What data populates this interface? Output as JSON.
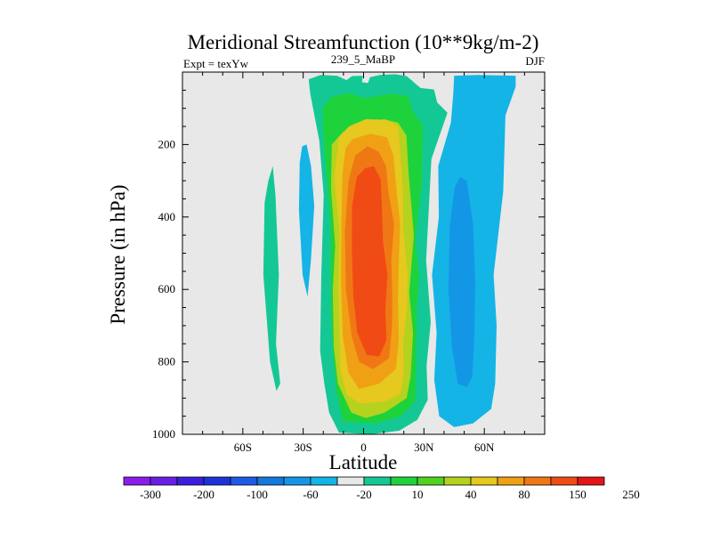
{
  "chart_data": {
    "type": "heatmap",
    "title": "Meridional Streamfunction (10**9kg/m-2)",
    "left_label": "Expt = texYw",
    "center_label": "239_5_MaBP",
    "right_label": "DJF",
    "xlabel": "Latitude",
    "ylabel": "Pressure (in hPa)",
    "xlim": [
      -90,
      90
    ],
    "ylim": [
      1000,
      0
    ],
    "x_ticks": [
      {
        "value": -60,
        "label": "60S"
      },
      {
        "value": -30,
        "label": "30S"
      },
      {
        "value": 0,
        "label": "0"
      },
      {
        "value": 30,
        "label": "30N"
      },
      {
        "value": 60,
        "label": "60N"
      }
    ],
    "y_ticks": [
      {
        "value": 200,
        "label": "200"
      },
      {
        "value": 400,
        "label": "400"
      },
      {
        "value": 600,
        "label": "600"
      },
      {
        "value": 800,
        "label": "800"
      },
      {
        "value": 1000,
        "label": "1000"
      }
    ],
    "background_color": "#e8e8e8",
    "colorbar": {
      "colors": [
        "#8c1eec",
        "#6a1ee8",
        "#3c1ee0",
        "#1e32dc",
        "#1e5ae6",
        "#1478dc",
        "#1496e6",
        "#14b4e6",
        "#e8e8e8",
        "#14c896",
        "#1ed23c",
        "#50d21e",
        "#b4d21e",
        "#e6c81e",
        "#f0a014",
        "#f07814",
        "#f04b14",
        "#e61414"
      ],
      "labels": [
        "-300",
        "-200",
        "-100",
        "-60",
        "-20",
        "10",
        "40",
        "80",
        "150",
        "250"
      ]
    },
    "contour_fields": [
      {
        "level": 10,
        "color": "#14c896",
        "polygon": [
          [
            -5.7,
            11
          ],
          [
            -0.3,
            10
          ],
          [
            -0.8,
            28
          ],
          [
            2.2,
            30
          ],
          [
            3.2,
            14
          ],
          [
            8.2,
            8
          ],
          [
            15.6,
            6
          ],
          [
            21.4,
            11
          ],
          [
            28.3,
            44
          ],
          [
            35,
            48
          ],
          [
            36.6,
            84
          ],
          [
            41.7,
            112
          ],
          [
            33.7,
            240
          ],
          [
            31.1,
            520
          ],
          [
            33.4,
            690
          ],
          [
            31.3,
            810
          ],
          [
            31.9,
            905
          ],
          [
            26.7,
            960
          ],
          [
            17.8,
            990
          ],
          [
            3.5,
            1000
          ],
          [
            -12.2,
            995
          ],
          [
            -17.1,
            940
          ],
          [
            -19.5,
            860
          ],
          [
            -21.6,
            770
          ],
          [
            -21,
            560
          ],
          [
            -19.8,
            340
          ],
          [
            -22,
            190
          ],
          [
            -26.5,
            60
          ],
          [
            -27.3,
            20
          ],
          [
            -21.4,
            8
          ],
          [
            -13.2,
            10
          ],
          [
            -8.5,
            22
          ]
        ]
      },
      {
        "level": 40,
        "color": "#1ed23c",
        "polygon": [
          [
            -7.3,
            57
          ],
          [
            -0.2,
            72
          ],
          [
            5.4,
            68
          ],
          [
            12.9,
            60
          ],
          [
            22.2,
            66
          ],
          [
            24.4,
            108
          ],
          [
            29.3,
            145
          ],
          [
            29.4,
            180
          ],
          [
            28.9,
            310
          ],
          [
            25.8,
            460
          ],
          [
            27.6,
            560
          ],
          [
            26.5,
            650
          ],
          [
            26.3,
            810
          ],
          [
            25.5,
            910
          ],
          [
            18.5,
            950
          ],
          [
            6.1,
            970
          ],
          [
            -10.2,
            965
          ],
          [
            -13.5,
            880
          ],
          [
            -15.4,
            760
          ],
          [
            -16.2,
            650
          ],
          [
            -16.4,
            540
          ],
          [
            -16.4,
            420
          ],
          [
            -18.7,
            260
          ],
          [
            -20.1,
            160
          ],
          [
            -20.3,
            100
          ],
          [
            -16.3,
            70
          ]
        ]
      },
      {
        "level": 80,
        "color": "#b4d21e",
        "polygon": [
          [
            -10.2,
            165
          ],
          [
            -0.5,
            140
          ],
          [
            10.2,
            130
          ],
          [
            17.2,
            140
          ],
          [
            21.3,
            175
          ],
          [
            22.4,
            280
          ],
          [
            25,
            450
          ],
          [
            22.7,
            610
          ],
          [
            24.6,
            720
          ],
          [
            23.4,
            840
          ],
          [
            21.4,
            900
          ],
          [
            10.5,
            940
          ],
          [
            1.1,
            955
          ],
          [
            -6.1,
            940
          ],
          [
            -12.8,
            860
          ],
          [
            -14.8,
            760
          ],
          [
            -15.3,
            600
          ],
          [
            -14.1,
            480
          ],
          [
            -16.2,
            320
          ],
          [
            -15.8,
            200
          ]
        ]
      },
      {
        "level": 120,
        "color": "#e6c81e",
        "polygon": [
          [
            -7.3,
            150
          ],
          [
            1.1,
            130
          ],
          [
            11.5,
            132
          ],
          [
            17.2,
            150
          ],
          [
            18.1,
            210
          ],
          [
            19.5,
            320
          ],
          [
            19.7,
            430
          ],
          [
            21.9,
            550
          ],
          [
            21.7,
            650
          ],
          [
            19.6,
            750
          ],
          [
            20,
            830
          ],
          [
            18.3,
            890
          ],
          [
            10.5,
            910
          ],
          [
            -2.2,
            915
          ],
          [
            -8.4,
            890
          ],
          [
            -11.6,
            820
          ],
          [
            -12,
            720
          ],
          [
            -12.6,
            580
          ],
          [
            -11.9,
            450
          ],
          [
            -14.5,
            290
          ],
          [
            -12.3,
            180
          ]
        ]
      },
      {
        "level": 150,
        "color": "#f0a014",
        "polygon": [
          [
            -5.4,
            185
          ],
          [
            3.3,
            170
          ],
          [
            11.6,
            180
          ],
          [
            14.8,
            230
          ],
          [
            16.6,
            340
          ],
          [
            18.2,
            420
          ],
          [
            17.5,
            520
          ],
          [
            17.1,
            620
          ],
          [
            17.5,
            740
          ],
          [
            16,
            820
          ],
          [
            7.7,
            860
          ],
          [
            -2.3,
            875
          ],
          [
            -7.5,
            830
          ],
          [
            -10.3,
            730
          ],
          [
            -11.2,
            580
          ],
          [
            -11,
            410
          ],
          [
            -10.5,
            280
          ],
          [
            -8.9,
            210
          ]
        ]
      },
      {
        "level": 200,
        "color": "#f07814",
        "polygon": [
          [
            -4.1,
            230
          ],
          [
            1.9,
            205
          ],
          [
            7.5,
            220
          ],
          [
            11.2,
            260
          ],
          [
            12.3,
            330
          ],
          [
            15.2,
            420
          ],
          [
            13.8,
            520
          ],
          [
            14.3,
            620
          ],
          [
            14.2,
            700
          ],
          [
            12.7,
            790
          ],
          [
            4.7,
            820
          ],
          [
            -2.2,
            800
          ],
          [
            -5.9,
            730
          ],
          [
            -8.8,
            600
          ],
          [
            -9.3,
            440
          ],
          [
            -7.5,
            300
          ]
        ]
      },
      {
        "level": 250,
        "color": "#f04b14",
        "polygon": [
          [
            -3.4,
            290
          ],
          [
            0.9,
            265
          ],
          [
            5.1,
            260
          ],
          [
            8.5,
            295
          ],
          [
            9.1,
            370
          ],
          [
            9.7,
            470
          ],
          [
            11.9,
            560
          ],
          [
            10.8,
            660
          ],
          [
            11.4,
            740
          ],
          [
            7.8,
            785
          ],
          [
            1.5,
            780
          ],
          [
            -3.1,
            720
          ],
          [
            -5.1,
            620
          ],
          [
            -5.8,
            490
          ],
          [
            -5.7,
            370
          ]
        ]
      },
      {
        "level": -10,
        "color": "#14c896",
        "polygon": [
          [
            -45.1,
            260
          ],
          [
            -43.8,
            340
          ],
          [
            -42.1,
            560
          ],
          [
            -43.5,
            750
          ],
          [
            -41.4,
            860
          ],
          [
            -43.3,
            880
          ],
          [
            -46.5,
            800
          ],
          [
            -49.8,
            560
          ],
          [
            -49.2,
            360
          ],
          [
            -47.3,
            300
          ]
        ]
      },
      {
        "level": -20,
        "color": "#14b4e6",
        "polygon": [
          [
            -28.3,
            200
          ],
          [
            -26.1,
            260
          ],
          [
            -24.5,
            370
          ],
          [
            -26.2,
            520
          ],
          [
            -27.8,
            620
          ],
          [
            -30.3,
            560
          ],
          [
            -32.1,
            380
          ],
          [
            -31.7,
            250
          ],
          [
            -30.5,
            205
          ]
        ]
      },
      {
        "level": -20,
        "color": "#14b4e6",
        "polygon": [
          [
            45,
            10
          ],
          [
            56.6,
            8
          ],
          [
            75.6,
            10
          ],
          [
            75.6,
            40
          ],
          [
            70.5,
            120
          ],
          [
            69.4,
            330
          ],
          [
            64.6,
            560
          ],
          [
            66.1,
            700
          ],
          [
            65.4,
            860
          ],
          [
            63.4,
            930
          ],
          [
            54.4,
            970
          ],
          [
            45,
            980
          ],
          [
            37.6,
            950
          ],
          [
            35.1,
            850
          ],
          [
            36.3,
            720
          ],
          [
            34,
            560
          ],
          [
            37.4,
            400
          ],
          [
            37.1,
            260
          ],
          [
            43.4,
            140
          ],
          [
            44.6,
            60
          ]
        ]
      },
      {
        "level": -40,
        "color": "#1496e6",
        "polygon": [
          [
            45.2,
            320
          ],
          [
            48,
            290
          ],
          [
            51.3,
            300
          ],
          [
            54.4,
            420
          ],
          [
            55.5,
            580
          ],
          [
            55.1,
            720
          ],
          [
            54.1,
            840
          ],
          [
            51.4,
            870
          ],
          [
            46.8,
            860
          ],
          [
            43.9,
            760
          ],
          [
            42.2,
            600
          ],
          [
            42.8,
            430
          ]
        ]
      }
    ]
  }
}
